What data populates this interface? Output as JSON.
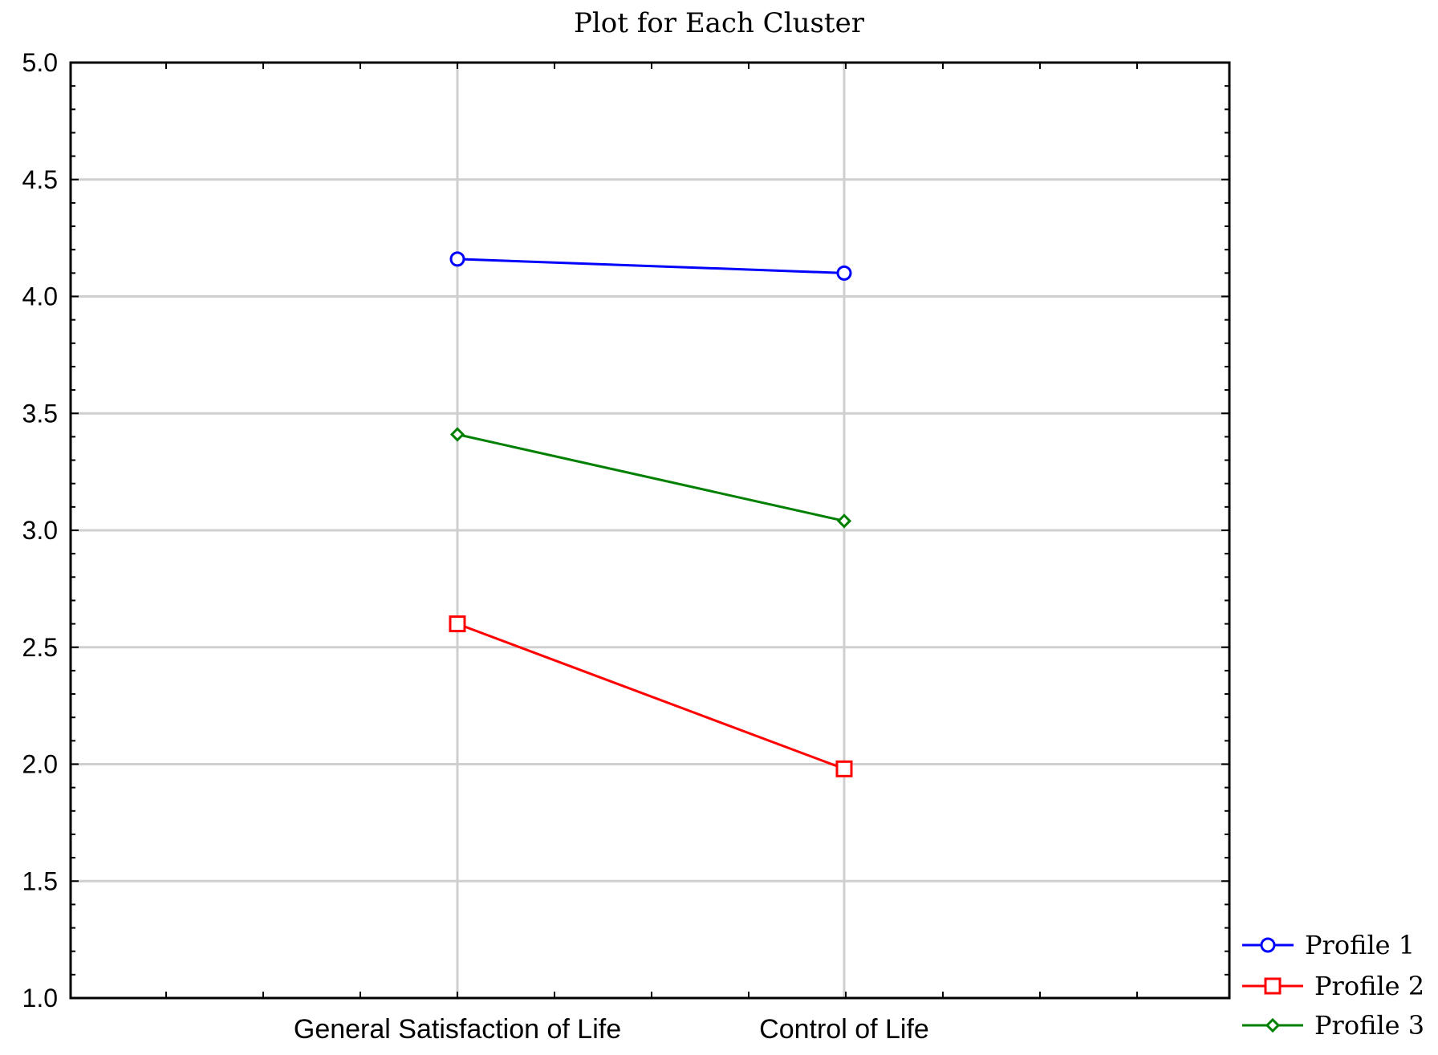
{
  "chart_data": {
    "type": "line",
    "title": "Plot for Each Cluster",
    "xlabel": "",
    "ylabel": "",
    "categories": [
      "General Satisfaction of Life",
      "Control of Life"
    ],
    "ylim": [
      1.0,
      5.0
    ],
    "y_ticks": [
      "1.0",
      "1.5",
      "2.0",
      "2.5",
      "3.0",
      "3.5",
      "4.0",
      "4.5",
      "5.0"
    ],
    "grid": true,
    "legend_position": "bottom-right, outside plot",
    "series": [
      {
        "name": "Profile 1",
        "values": [
          4.16,
          4.1
        ],
        "color": "#0000ff",
        "marker": "circle"
      },
      {
        "name": "Profile 2",
        "values": [
          2.6,
          1.98
        ],
        "color": "#ff0000",
        "marker": "square"
      },
      {
        "name": "Profile 3",
        "values": [
          3.41,
          3.04
        ],
        "color": "#008000",
        "marker": "diamond"
      }
    ]
  }
}
